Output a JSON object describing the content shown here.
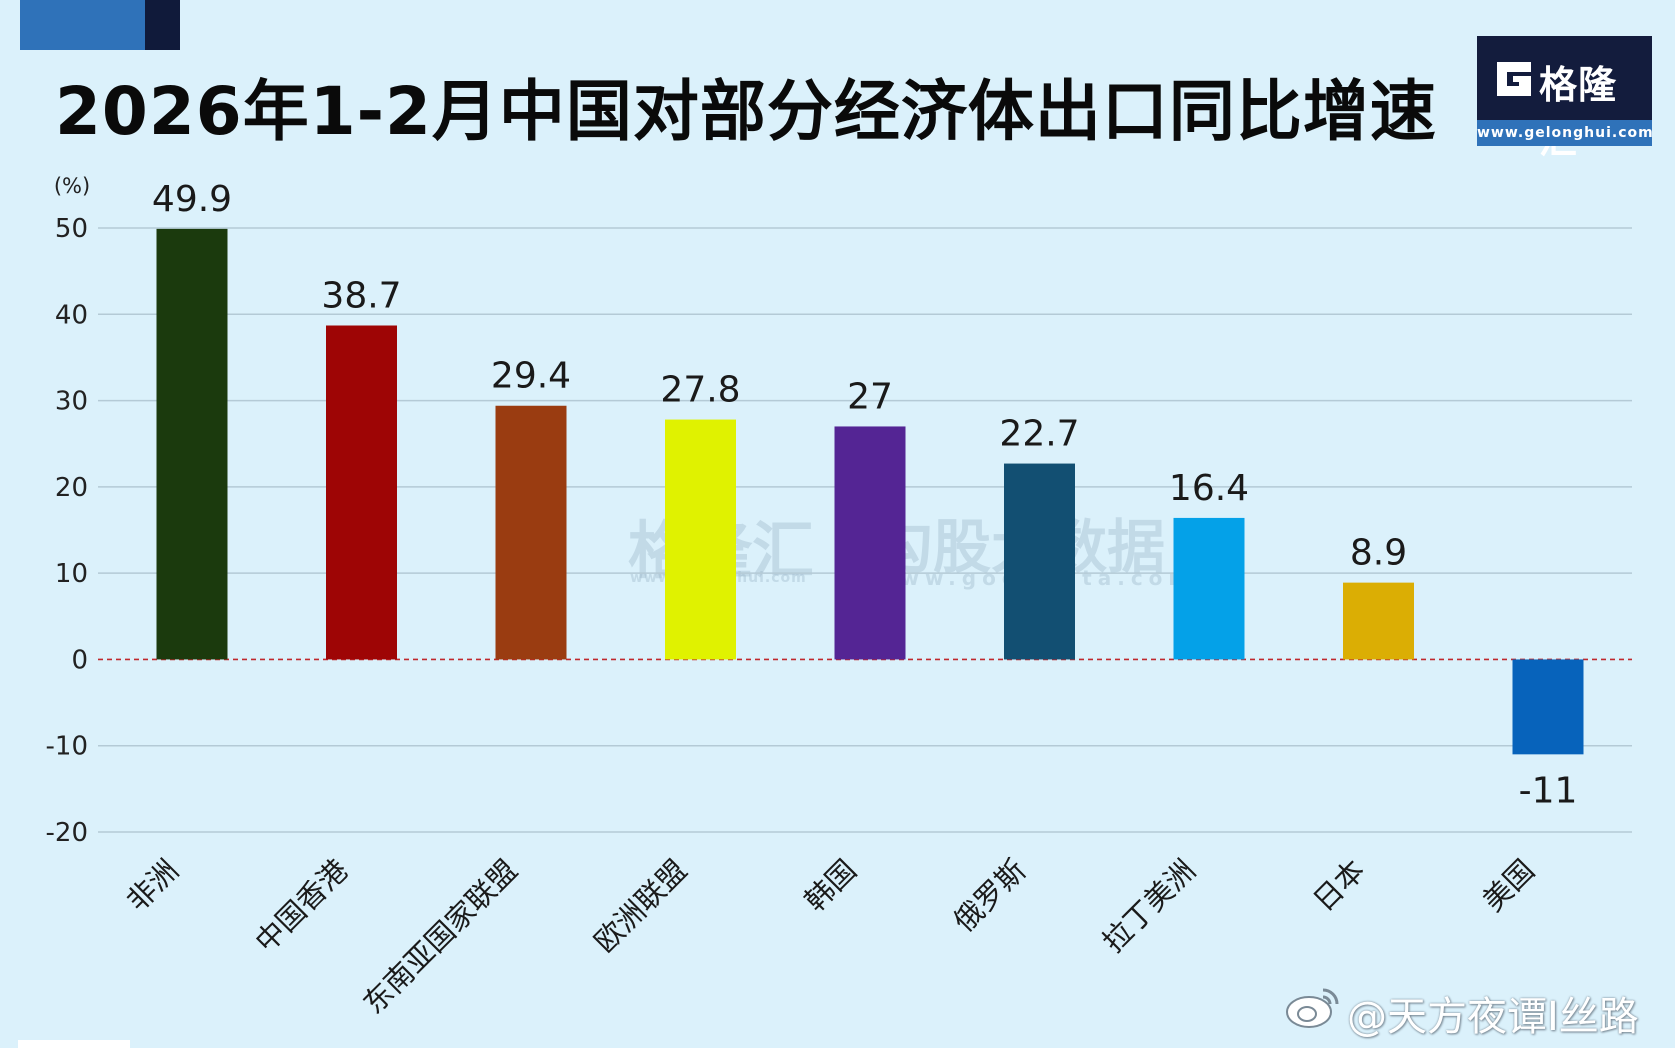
{
  "header": {
    "title": "2026年1-2月中国对部分经济体出口同比增速"
  },
  "logo": {
    "name": "格隆汇",
    "url": "www.gelonghui.com"
  },
  "watermarks": {
    "brand_name": "格隆汇",
    "brand_url": "www.gelonghui.com",
    "second_name": "勾股大数据",
    "second_url": "www.gogudata.com"
  },
  "credit": {
    "handle": "@天方夜谭I丝路"
  },
  "colors": {
    "background": "#dbf1fb",
    "zero_line": "#c0282d",
    "grid": "#b4cad6"
  },
  "chart_data": {
    "type": "bar",
    "title": "2026年1-2月中国对部分经济体出口同比增速",
    "ylabel": "(%)",
    "xlabel": "",
    "ylim": [
      -20,
      50
    ],
    "yticks": [
      50,
      40,
      30,
      20,
      10,
      0,
      -10,
      -20
    ],
    "grid": true,
    "categories": [
      "非洲",
      "中国香港",
      "东南亚国家联盟",
      "欧洲联盟",
      "韩国",
      "俄罗斯",
      "拉丁美洲",
      "日本",
      "美国"
    ],
    "values": [
      49.9,
      38.7,
      29.4,
      27.8,
      27,
      22.7,
      16.4,
      8.9,
      -11
    ],
    "value_labels": [
      "49.9",
      "38.7",
      "29.4",
      "27.8",
      "27",
      "22.7",
      "16.4",
      "8.9",
      "-11"
    ],
    "bar_colors": [
      "#1b3a0d",
      "#9e0505",
      "#9a3c11",
      "#e0f200",
      "#542594",
      "#124f72",
      "#04a1e8",
      "#dbae04",
      "#0763bb"
    ]
  }
}
